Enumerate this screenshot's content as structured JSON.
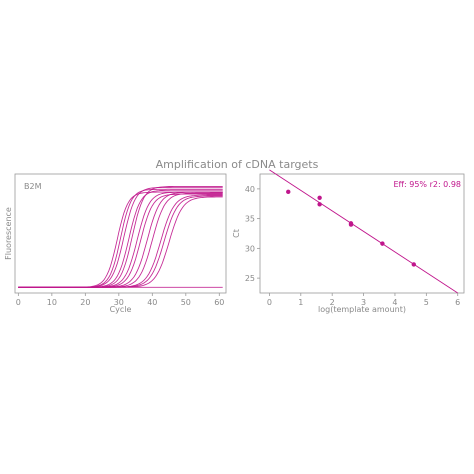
{
  "figure": {
    "title": "Amplification of cDNA targets"
  },
  "colors": {
    "series": "#c0168c",
    "axis": "#9a9a9a",
    "text": "#8a8a8a"
  },
  "chart_data": [
    {
      "type": "line",
      "panel": "left",
      "annotation": "B2M",
      "xlabel": "Cycle",
      "ylabel": "Fluorescence",
      "xlim": [
        -1,
        62
      ],
      "ylim": [
        0,
        1.25
      ],
      "xticks": [
        0,
        10,
        20,
        30,
        40,
        50,
        60
      ],
      "yticks_shown": false,
      "grid": false,
      "curve_model": "sigmoid",
      "series": [
        {
          "midpoint": 29.5,
          "plateau": 1.0,
          "slope": 1.6
        },
        {
          "midpoint": 30.5,
          "plateau": 1.03,
          "slope": 1.6
        },
        {
          "midpoint": 31.5,
          "plateau": 1.05,
          "slope": 1.7
        },
        {
          "midpoint": 33.0,
          "plateau": 1.02,
          "slope": 1.7
        },
        {
          "midpoint": 34.0,
          "plateau": 1.06,
          "slope": 1.7
        },
        {
          "midpoint": 35.5,
          "plateau": 1.0,
          "slope": 1.8
        },
        {
          "midpoint": 36.5,
          "plateau": 0.98,
          "slope": 1.8
        },
        {
          "midpoint": 38.5,
          "plateau": 1.0,
          "slope": 1.9
        },
        {
          "midpoint": 40.0,
          "plateau": 0.99,
          "slope": 1.9
        },
        {
          "midpoint": 42.5,
          "plateau": 0.97,
          "slope": 2.0
        },
        {
          "midpoint": 43.5,
          "plateau": 0.96,
          "slope": 2.0
        },
        {
          "midpoint": 45.0,
          "plateau": 0.95,
          "slope": 2.0
        },
        {
          "midpoint": 0,
          "plateau": 0.0,
          "slope": 1.0
        }
      ]
    },
    {
      "type": "scatter",
      "panel": "right",
      "annotation": "Eff: 95% r2: 0.98",
      "xlabel": "log(template amount)",
      "ylabel": "Ct",
      "xlim": [
        -0.3,
        6.2
      ],
      "ylim": [
        22.5,
        42.5
      ],
      "xticks": [
        0,
        1,
        2,
        3,
        4,
        5,
        6
      ],
      "yticks": [
        25,
        30,
        35,
        40
      ],
      "grid": false,
      "points": [
        {
          "x": 0.6,
          "y": 39.5
        },
        {
          "x": 1.6,
          "y": 38.5
        },
        {
          "x": 1.6,
          "y": 37.4
        },
        {
          "x": 2.6,
          "y": 34.2
        },
        {
          "x": 2.6,
          "y": 34.0
        },
        {
          "x": 3.6,
          "y": 30.8
        },
        {
          "x": 4.6,
          "y": 27.3
        }
      ],
      "fit": {
        "slope": -3.45,
        "intercept": 43.2,
        "x_range": [
          0,
          6
        ]
      }
    }
  ]
}
